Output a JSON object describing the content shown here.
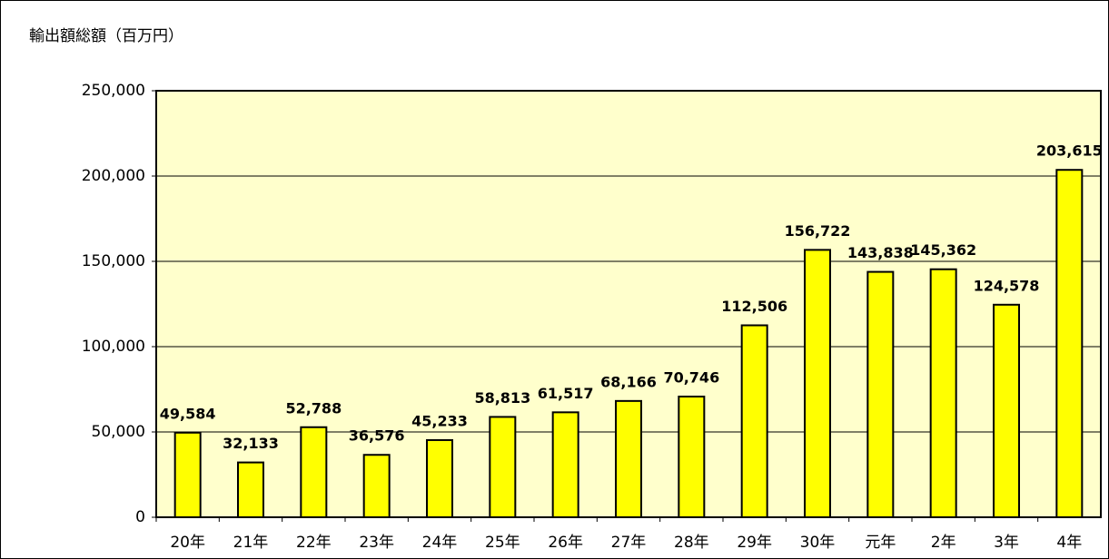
{
  "chart_data": {
    "type": "bar",
    "title": "輸出額総額（百万円）",
    "categories": [
      "20年",
      "21年",
      "22年",
      "23年",
      "24年",
      "25年",
      "26年",
      "27年",
      "28年",
      "29年",
      "30年",
      "元年",
      "2年",
      "3年",
      "4年"
    ],
    "values": [
      49584,
      32133,
      52788,
      36576,
      45233,
      58813,
      61517,
      68166,
      70746,
      112506,
      156722,
      143838,
      145362,
      124578,
      203615
    ],
    "value_labels": [
      "49,584",
      "32,133",
      "52,788",
      "36,576",
      "45,233",
      "58,813",
      "61,517",
      "68,166",
      "70,746",
      "112,506",
      "156,722",
      "143,838",
      "145,362",
      "124,578",
      "203,615"
    ],
    "color": "#ffff00",
    "ylim": [
      0,
      250000
    ],
    "yticks": [
      0,
      {
        "value": 50000,
        "label": "50,000"
      },
      {
        "value": 100000,
        "label": "100,000"
      },
      {
        "value": 150000,
        "label": "150,000"
      },
      {
        "value": 200000,
        "label": "200,000"
      },
      {
        "value": 250000,
        "label": "250,000"
      }
    ],
    "grid": true
  }
}
